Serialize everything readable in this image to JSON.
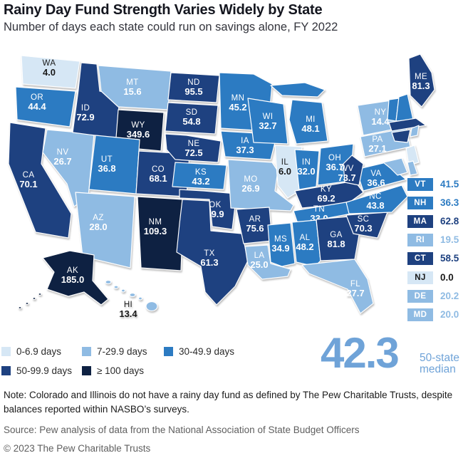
{
  "header": {
    "title": "Rainy Day Fund Strength Varies Widely by State",
    "subtitle": "Number of days each state could run on savings alone, FY 2022"
  },
  "chart_data": {
    "type": "choropleth",
    "title": "Rainy Day Fund Strength Varies Widely by State",
    "subtitle": "Number of days each state could run on savings alone, FY 2022",
    "unit": "days",
    "label_dark_color": "#1a1a1a",
    "buckets": [
      {
        "label": "0-6.9 days",
        "color": "#d6e7f5",
        "text_color": "#1a1a1a"
      },
      {
        "label": "7-29.9 days",
        "color": "#8fbbe3",
        "text_color": "#ffffff"
      },
      {
        "label": "30-49.9 days",
        "color": "#2c7bc2",
        "text_color": "#ffffff"
      },
      {
        "label": "50-99.9 days",
        "color": "#1e4180",
        "text_color": "#ffffff"
      },
      {
        "label": "≥ 100 days",
        "color": "#0e2142",
        "text_color": "#ffffff"
      }
    ],
    "median": {
      "value": "42.3",
      "label": [
        "50-state",
        "median"
      ],
      "color": "#6fa3d8"
    },
    "callout_order": [
      "VT",
      "NH",
      "MA",
      "RI",
      "CT",
      "NJ",
      "DE",
      "MD"
    ],
    "states": [
      {
        "abbr": "WA",
        "value": "4.0",
        "bucket": 0
      },
      {
        "abbr": "OR",
        "value": "44.4",
        "bucket": 2
      },
      {
        "abbr": "CA",
        "value": "70.1",
        "bucket": 3
      },
      {
        "abbr": "NV",
        "value": "26.7",
        "bucket": 1
      },
      {
        "abbr": "ID",
        "value": "72.9",
        "bucket": 3
      },
      {
        "abbr": "MT",
        "value": "15.6",
        "bucket": 1
      },
      {
        "abbr": "WY",
        "value": "349.6",
        "bucket": 4
      },
      {
        "abbr": "UT",
        "value": "36.8",
        "bucket": 2
      },
      {
        "abbr": "CO",
        "value": "68.1",
        "bucket": 3
      },
      {
        "abbr": "AZ",
        "value": "28.0",
        "bucket": 1
      },
      {
        "abbr": "NM",
        "value": "109.3",
        "bucket": 4
      },
      {
        "abbr": "ND",
        "value": "95.5",
        "bucket": 3
      },
      {
        "abbr": "SD",
        "value": "54.8",
        "bucket": 3
      },
      {
        "abbr": "NE",
        "value": "72.5",
        "bucket": 3
      },
      {
        "abbr": "KS",
        "value": "43.2",
        "bucket": 2
      },
      {
        "abbr": "OK",
        "value": "59.9",
        "bucket": 3
      },
      {
        "abbr": "TX",
        "value": "61.3",
        "bucket": 3
      },
      {
        "abbr": "MN",
        "value": "45.2",
        "bucket": 2
      },
      {
        "abbr": "IA",
        "value": "37.3",
        "bucket": 2
      },
      {
        "abbr": "MO",
        "value": "26.9",
        "bucket": 1
      },
      {
        "abbr": "AR",
        "value": "75.6",
        "bucket": 3
      },
      {
        "abbr": "LA",
        "value": "25.0",
        "bucket": 1
      },
      {
        "abbr": "WI",
        "value": "32.7",
        "bucket": 2
      },
      {
        "abbr": "IL",
        "value": "6.0",
        "bucket": 0
      },
      {
        "abbr": "MI",
        "value": "48.1",
        "bucket": 2
      },
      {
        "abbr": "IN",
        "value": "32.0",
        "bucket": 2
      },
      {
        "abbr": "OH",
        "value": "36.7",
        "bucket": 2
      },
      {
        "abbr": "KY",
        "value": "69.2",
        "bucket": 3
      },
      {
        "abbr": "TN",
        "value": "33.0",
        "bucket": 2
      },
      {
        "abbr": "MS",
        "value": "34.9",
        "bucket": 2
      },
      {
        "abbr": "AL",
        "value": "48.2",
        "bucket": 2
      },
      {
        "abbr": "GA",
        "value": "81.8",
        "bucket": 3
      },
      {
        "abbr": "FL",
        "value": "27.7",
        "bucket": 1
      },
      {
        "abbr": "SC",
        "value": "70.3",
        "bucket": 3
      },
      {
        "abbr": "NC",
        "value": "43.8",
        "bucket": 2
      },
      {
        "abbr": "VA",
        "value": "36.6",
        "bucket": 2
      },
      {
        "abbr": "WV",
        "value": "73.7",
        "bucket": 3
      },
      {
        "abbr": "PA",
        "value": "27.1",
        "bucket": 1
      },
      {
        "abbr": "NY",
        "value": "14.4",
        "bucket": 1
      },
      {
        "abbr": "ME",
        "value": "81.3",
        "bucket": 3
      },
      {
        "abbr": "VT",
        "value": "41.5",
        "bucket": 2
      },
      {
        "abbr": "NH",
        "value": "36.3",
        "bucket": 2
      },
      {
        "abbr": "MA",
        "value": "62.8",
        "bucket": 3
      },
      {
        "abbr": "RI",
        "value": "19.5",
        "bucket": 1
      },
      {
        "abbr": "CT",
        "value": "58.5",
        "bucket": 3
      },
      {
        "abbr": "NJ",
        "value": "0.0",
        "bucket": 0
      },
      {
        "abbr": "DE",
        "value": "20.2",
        "bucket": 1
      },
      {
        "abbr": "MD",
        "value": "20.0",
        "bucket": 1
      },
      {
        "abbr": "AK",
        "value": "185.0",
        "bucket": 4
      },
      {
        "abbr": "HI",
        "value": "13.4",
        "bucket": 1
      }
    ]
  },
  "footer": {
    "note": "Note: Colorado and Illinois do not have a rainy day fund as defined by The Pew Charitable Trusts, despite balances reported within NASBO’s surveys.",
    "source": "Source: Pew analysis of data from the National Association of State Budget Officers",
    "copyright": "© 2023 The Pew Charitable Trusts"
  }
}
